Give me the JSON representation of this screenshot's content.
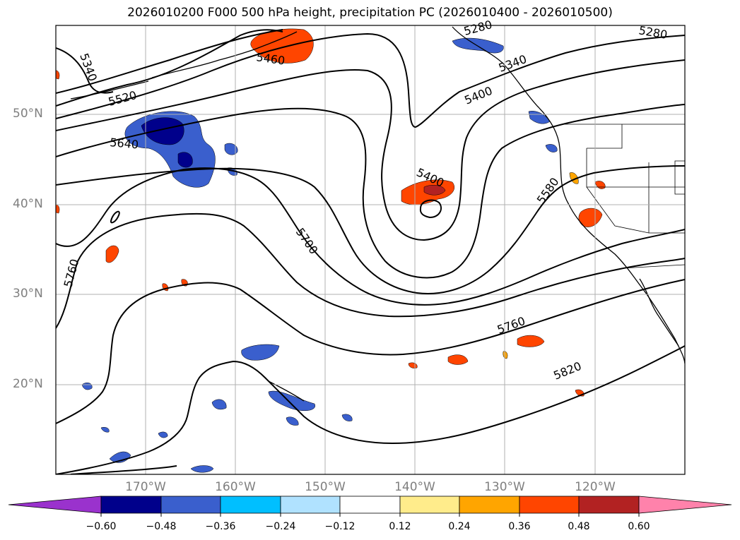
{
  "title": "2026010200 F000 500 hPa height, precipitation PC (2026010400 - 2026010500)",
  "latitude_labels": [
    "50°N",
    "40°N",
    "30°N",
    "20°N"
  ],
  "longitude_labels": [
    "170°W",
    "160°W",
    "150°W",
    "140°W",
    "130°W",
    "120°W"
  ],
  "contour_labels": [
    "5280",
    "5340",
    "5460",
    "5520",
    "5400",
    "5640",
    "5580",
    "5700",
    "5760",
    "5820"
  ],
  "colorbar": {
    "tick_labels": [
      "−0.60",
      "−0.48",
      "−0.36",
      "−0.24",
      "−0.12",
      "0.12",
      "0.24",
      "0.36",
      "0.48",
      "0.60"
    ],
    "colors": [
      "#9a32cd",
      "#00008b",
      "#3a5fcd",
      "#00bfff",
      "#b0e2ff",
      "#ffffff",
      "#ffec8b",
      "#ffa500",
      "#ff4500",
      "#b22222",
      "#ff82ab"
    ]
  }
}
